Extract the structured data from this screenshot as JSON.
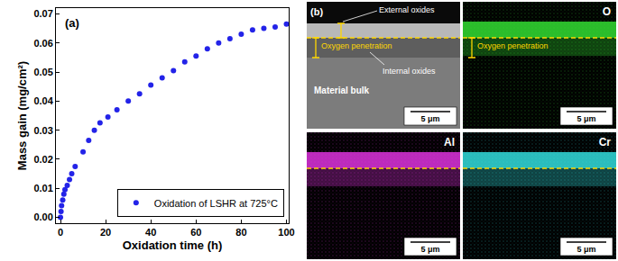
{
  "chart_data": {
    "type": "scatter",
    "panel_label": "(a)",
    "x_label": "Oxidation time (h)",
    "y_label": "Mass gain (mg/cm²)",
    "series": [
      {
        "name": "Oxidation of LSHR at 725°C",
        "color": "#2323e8",
        "marker": "circle",
        "x": [
          0,
          0.25,
          0.5,
          1,
          1.5,
          2,
          3,
          4,
          5,
          6.5,
          10,
          12.5,
          15,
          17.5,
          21,
          25,
          30,
          35,
          40,
          45,
          50,
          55,
          60,
          65,
          70,
          75,
          80,
          85,
          90,
          95,
          100
        ],
        "values": [
          0.0,
          0.002,
          0.004,
          0.006,
          0.008,
          0.0095,
          0.011,
          0.013,
          0.015,
          0.0175,
          0.0225,
          0.0265,
          0.03,
          0.0325,
          0.0345,
          0.037,
          0.04,
          0.0425,
          0.0455,
          0.048,
          0.0505,
          0.0535,
          0.0555,
          0.058,
          0.06,
          0.0615,
          0.063,
          0.0645,
          0.065,
          0.0655,
          0.0665
        ]
      }
    ],
    "xlim": [
      -2,
      101
    ],
    "xticks": [
      0,
      20,
      40,
      60,
      80,
      100
    ],
    "ylim": [
      -0.002,
      0.072
    ],
    "yticks": [
      {
        "value": 0,
        "label": "0.00"
      },
      {
        "value": 0.01,
        "label": "0.01"
      },
      {
        "value": 0.02,
        "label": "0.02"
      },
      {
        "value": 0.03,
        "label": "0.03"
      },
      {
        "value": 0.04,
        "label": "0.04"
      },
      {
        "value": 0.05,
        "label": "0.05"
      },
      {
        "value": 0.06,
        "label": "0.06"
      },
      {
        "value": 0.07,
        "label": "0.07"
      }
    ],
    "grid": false,
    "legend": "lower right"
  },
  "micrograph": {
    "panel_label": "(b)",
    "sem": {
      "external": "External oxides",
      "penetration": "Oxygen penetration",
      "internal": "Internal oxides",
      "bulk": "Material bulk",
      "scale_bar": "5 μm"
    },
    "maps": [
      {
        "element": "O",
        "color": "#33dd33",
        "annotation": "Oxygen penetration",
        "scale_bar": "5 μm"
      },
      {
        "element": "Al",
        "color": "#dd33dd",
        "scale_bar": "5 μm"
      },
      {
        "element": "Cr",
        "color": "#33dddd",
        "scale_bar": "5 μm"
      }
    ]
  }
}
